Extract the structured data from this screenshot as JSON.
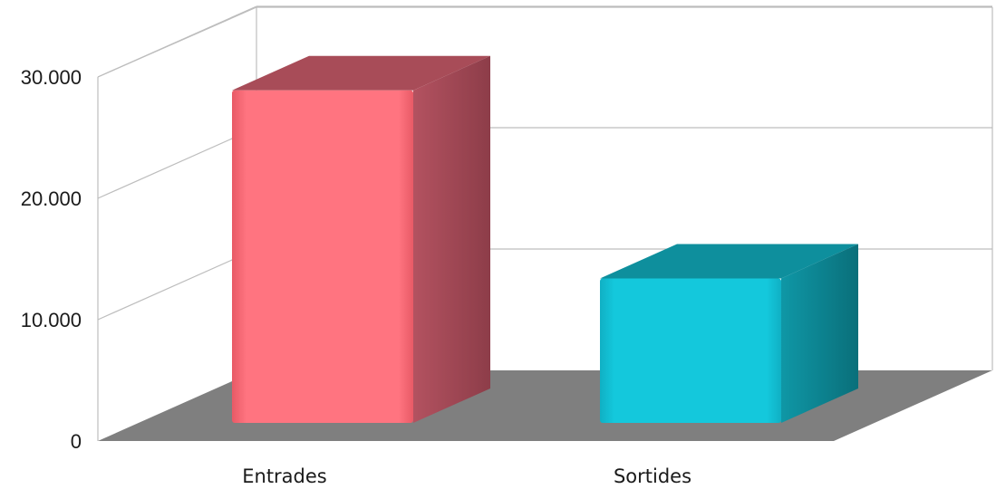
{
  "chart_data": {
    "type": "bar",
    "subtype": "3d-column",
    "title": "",
    "xlabel": "",
    "ylabel": "",
    "categories": [
      "Entrades",
      "Sortides"
    ],
    "values": [
      28000,
      12500
    ],
    "ylim": [
      0,
      30000
    ],
    "yticks": [
      0,
      10000,
      20000,
      30000
    ],
    "ytick_labels": [
      "0",
      "10.000",
      "20.000",
      "30.000"
    ],
    "grid": true,
    "legend": "none",
    "colors": {
      "bars": [
        "#ff7480",
        "#14c8dc"
      ],
      "bar_sides": [
        "#a84c58",
        "#0e8f9d"
      ],
      "floor": "#7f7f7f",
      "grid": "#bdbdbd"
    }
  }
}
